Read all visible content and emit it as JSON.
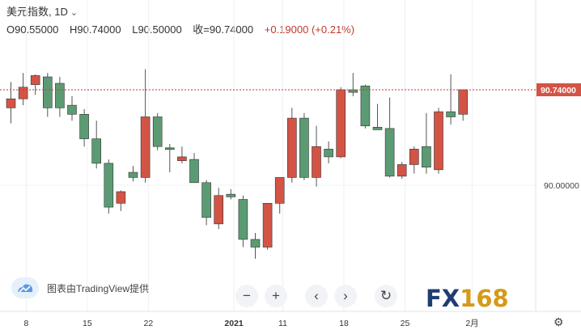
{
  "header": {
    "symbol": "美元指数",
    "interval": "1D",
    "open": "O90.55000",
    "high": "H90.74000",
    "low": "L90.50000",
    "close": "收=90.74000",
    "change": "+0.19000 (+0.21%)"
  },
  "attribution": "图表由TradingView提供",
  "controls": {
    "zoom_out": "−",
    "zoom_in": "+",
    "prev": "‹",
    "next": "›",
    "reset": "↻"
  },
  "logo": {
    "prefix": "FX",
    "suffix": "168"
  },
  "colors": {
    "up": "#d35445",
    "down": "#5b9b73",
    "price_line": "#c0392b",
    "grid": "#eef0f3"
  },
  "chart_data": {
    "type": "candlestick",
    "title": "美元指数, 1D",
    "xlabel": "",
    "ylabel": "",
    "last_price": 90.74,
    "last_price_label": "90.74000",
    "y_tick_labels": [
      "90.00000"
    ],
    "y_ticks": [
      90.0
    ],
    "ylim": [
      89.6,
      91.4
    ],
    "x_tick_labels": [
      "8",
      "15",
      "22",
      "2021",
      "11",
      "18",
      "25",
      "2月"
    ],
    "x_tick_slots": [
      1.25,
      6.25,
      11.25,
      18.25,
      22.25,
      27.25,
      32.25,
      37.75
    ],
    "slot_count": 39,
    "candles": [
      {
        "o": 90.6,
        "h": 90.8,
        "l": 90.48,
        "c": 90.67
      },
      {
        "o": 90.67,
        "h": 90.87,
        "l": 90.62,
        "c": 90.76
      },
      {
        "o": 90.78,
        "h": 90.86,
        "l": 90.7,
        "c": 90.85
      },
      {
        "o": 90.84,
        "h": 90.87,
        "l": 90.53,
        "c": 90.6
      },
      {
        "o": 90.79,
        "h": 90.84,
        "l": 90.53,
        "c": 90.6
      },
      {
        "o": 90.62,
        "h": 90.69,
        "l": 90.5,
        "c": 90.55
      },
      {
        "o": 90.55,
        "h": 90.59,
        "l": 90.3,
        "c": 90.36
      },
      {
        "o": 90.36,
        "h": 90.5,
        "l": 90.13,
        "c": 90.17
      },
      {
        "o": 90.17,
        "h": 90.2,
        "l": 89.78,
        "c": 89.83
      },
      {
        "o": 89.86,
        "h": 89.96,
        "l": 89.8,
        "c": 89.95
      },
      {
        "o": 90.1,
        "h": 90.15,
        "l": 90.03,
        "c": 90.06
      },
      {
        "o": 90.06,
        "h": 90.9,
        "l": 90.02,
        "c": 90.53
      },
      {
        "o": 90.53,
        "h": 90.56,
        "l": 90.27,
        "c": 90.3
      },
      {
        "o": 90.29,
        "h": 90.32,
        "l": 90.1,
        "c": 90.28
      },
      {
        "o": 90.19,
        "h": 90.3,
        "l": 90.17,
        "c": 90.22
      },
      {
        "o": 90.2,
        "h": 90.25,
        "l": 90.03,
        "c": 90.02
      },
      {
        "o": 90.02,
        "h": 90.04,
        "l": 89.69,
        "c": 89.75
      },
      {
        "o": 89.7,
        "h": 89.98,
        "l": 89.66,
        "c": 89.92
      },
      {
        "o": 89.93,
        "h": 89.97,
        "l": 89.89,
        "c": 89.91
      },
      {
        "o": 89.89,
        "h": 89.92,
        "l": 89.52,
        "c": 89.58
      },
      {
        "o": 89.58,
        "h": 89.63,
        "l": 89.43,
        "c": 89.52
      },
      {
        "o": 89.52,
        "h": 89.86,
        "l": 89.5,
        "c": 89.86
      },
      {
        "o": 89.86,
        "h": 90.06,
        "l": 89.78,
        "c": 90.06
      },
      {
        "o": 90.06,
        "h": 90.6,
        "l": 90.02,
        "c": 90.52
      },
      {
        "o": 90.52,
        "h": 90.56,
        "l": 90.04,
        "c": 90.06
      },
      {
        "o": 90.06,
        "h": 90.46,
        "l": 89.99,
        "c": 90.3
      },
      {
        "o": 90.28,
        "h": 90.34,
        "l": 90.17,
        "c": 90.22
      },
      {
        "o": 90.22,
        "h": 90.76,
        "l": 90.21,
        "c": 90.74
      },
      {
        "o": 90.74,
        "h": 90.87,
        "l": 90.69,
        "c": 90.72
      },
      {
        "o": 90.77,
        "h": 90.78,
        "l": 90.44,
        "c": 90.46
      },
      {
        "o": 90.45,
        "h": 90.63,
        "l": 90.43,
        "c": 90.43
      },
      {
        "o": 90.44,
        "h": 90.68,
        "l": 90.06,
        "c": 90.07
      },
      {
        "o": 90.07,
        "h": 90.18,
        "l": 90.05,
        "c": 90.16
      },
      {
        "o": 90.16,
        "h": 90.3,
        "l": 90.09,
        "c": 90.28
      },
      {
        "o": 90.3,
        "h": 90.56,
        "l": 90.09,
        "c": 90.14
      },
      {
        "o": 90.12,
        "h": 90.6,
        "l": 90.09,
        "c": 90.57
      },
      {
        "o": 90.57,
        "h": 90.86,
        "l": 90.47,
        "c": 90.53
      },
      {
        "o": 90.55,
        "h": 90.74,
        "l": 90.5,
        "c": 90.74
      }
    ]
  }
}
